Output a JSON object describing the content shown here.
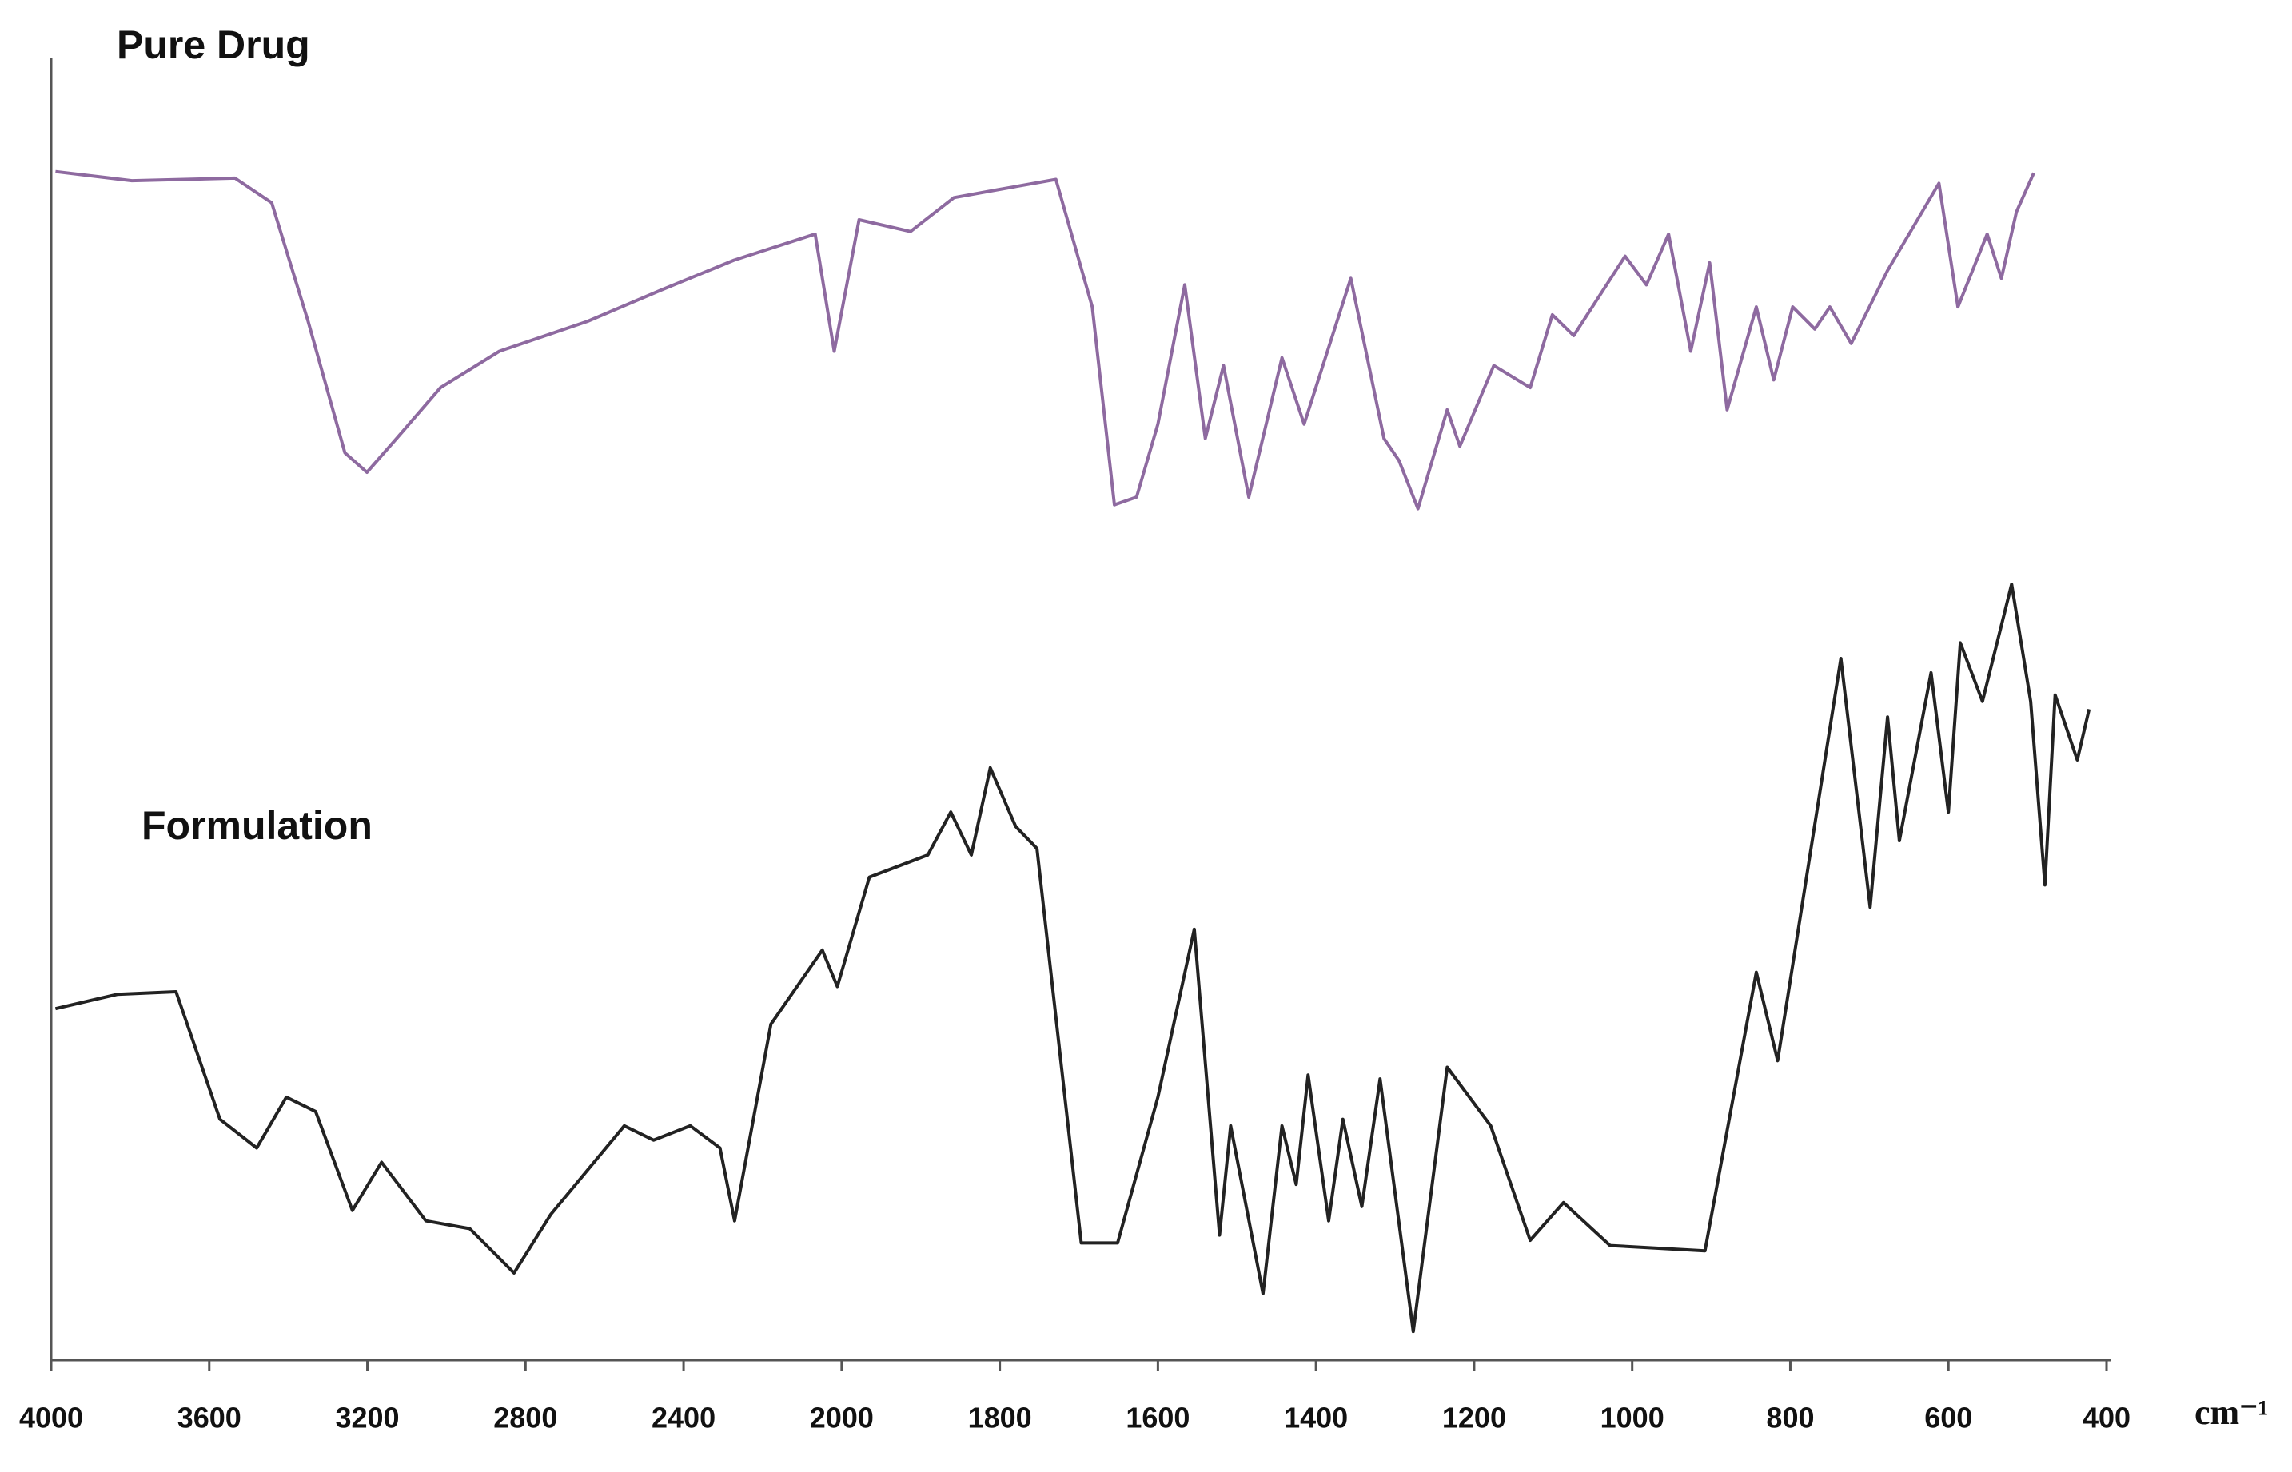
{
  "chart_data": {
    "type": "line",
    "x_label": "cm⁻¹",
    "xlim": [
      4000,
      400
    ],
    "xticks": [
      4000,
      3600,
      3200,
      2800,
      2400,
      2000,
      1800,
      1600,
      1400,
      1200,
      1000,
      800,
      600,
      400
    ],
    "ylim": [
      0,
      100
    ],
    "series": [
      {
        "name": "Pure Drug",
        "color": "#8e6aa0",
        "x": [
          3989,
          3796,
          3535,
          3442,
          3350,
          3257,
          3201,
          3126,
          3015,
          2866,
          2643,
          2457,
          2272,
          2067,
          2019,
          1978,
          1913,
          1858,
          1803,
          1729,
          1683,
          1655,
          1627,
          1600,
          1566,
          1540,
          1517,
          1485,
          1443,
          1415,
          1356,
          1314,
          1295,
          1271,
          1234,
          1218,
          1175,
          1129,
          1101,
          1074,
          1009,
          982,
          954,
          926,
          902,
          880,
          843,
          821,
          797,
          769,
          750,
          723,
          677,
          612,
          588,
          551,
          533,
          514,
          492
        ],
        "values": [
          91.3,
          90.6,
          90.8,
          88.9,
          79.8,
          69.7,
          68.2,
          70.8,
          74.7,
          77.5,
          79.8,
          82.2,
          84.5,
          86.5,
          77.5,
          87.6,
          86.7,
          89.3,
          89.9,
          90.7,
          80.9,
          65.7,
          66.3,
          71.9,
          82.6,
          70.8,
          76.4,
          66.3,
          77.0,
          71.9,
          83.1,
          70.8,
          69.1,
          65.4,
          73.0,
          70.2,
          76.4,
          74.7,
          80.3,
          78.7,
          84.8,
          82.6,
          86.5,
          77.5,
          84.3,
          73.0,
          80.9,
          75.3,
          80.9,
          79.2,
          80.9,
          78.1,
          83.7,
          90.4,
          80.9,
          86.5,
          83.1,
          88.2,
          91.2
        ]
      },
      {
        "name": "Formulation",
        "color": "#222222",
        "x": [
          3989,
          3833,
          3684,
          3573,
          3480,
          3405,
          3331,
          3238,
          3164,
          3052,
          2941,
          2829,
          2736,
          2550,
          2476,
          2383,
          2308,
          2271,
          2179,
          2049,
          2011,
          1965,
          1891,
          1862,
          1836,
          1812,
          1780,
          1753,
          1697,
          1651,
          1600,
          1554,
          1522,
          1508,
          1467,
          1443,
          1425,
          1410,
          1384,
          1366,
          1342,
          1319,
          1277,
          1234,
          1179,
          1129,
          1087,
          1028,
          908,
          843,
          816,
          736,
          699,
          677,
          662,
          622,
          600,
          585,
          557,
          520,
          496,
          478,
          465,
          437,
          422
        ],
        "values": [
          27.0,
          28.1,
          28.3,
          18.5,
          16.3,
          20.2,
          19.1,
          11.5,
          15.2,
          10.7,
          10.1,
          6.7,
          11.2,
          18.0,
          16.9,
          18.0,
          16.3,
          10.7,
          25.8,
          31.5,
          28.7,
          37.1,
          38.8,
          42.1,
          38.8,
          45.5,
          41.0,
          39.3,
          9.0,
          9.0,
          20.2,
          33.1,
          9.6,
          18.0,
          5.1,
          18.0,
          13.5,
          21.9,
          10.7,
          18.5,
          11.8,
          21.6,
          2.2,
          22.5,
          18.0,
          9.2,
          12.1,
          8.8,
          8.4,
          29.8,
          23.0,
          53.9,
          34.8,
          49.4,
          39.9,
          52.8,
          42.1,
          55.1,
          50.6,
          59.6,
          50.6,
          36.5,
          51.1,
          46.1,
          50.0
        ]
      }
    ]
  }
}
